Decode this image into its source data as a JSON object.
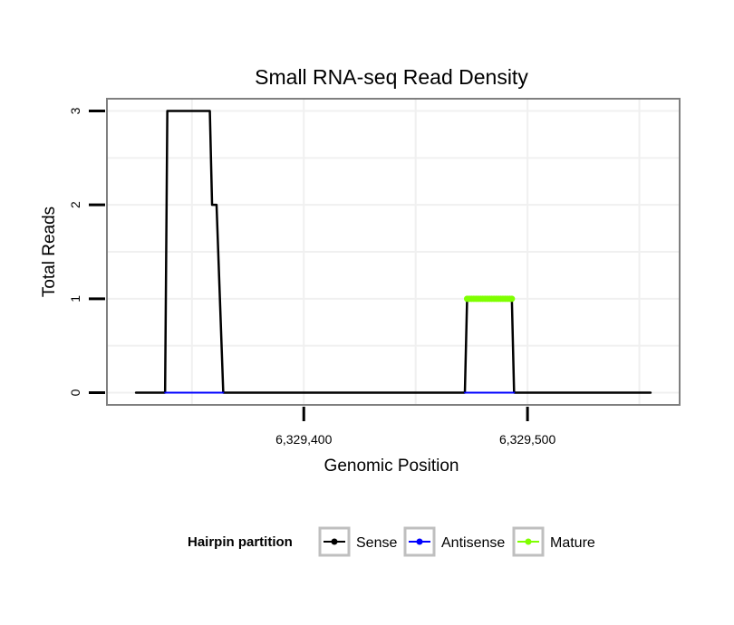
{
  "chart_data": {
    "type": "line",
    "title": "Small RNA-seq Read Density",
    "xlabel": "Genomic Position",
    "ylabel": "Total Reads",
    "xlim": [
      6329312,
      6329568
    ],
    "ylim": [
      -0.13,
      3.13
    ],
    "xticks": [
      {
        "value": 6329400,
        "label": "6,329,400"
      },
      {
        "value": 6329500,
        "label": "6,329,500"
      }
    ],
    "yticks": [
      {
        "value": 0,
        "label": "0"
      },
      {
        "value": 1,
        "label": "1"
      },
      {
        "value": 2,
        "label": "2"
      },
      {
        "value": 3,
        "label": "3"
      }
    ],
    "grid": true,
    "legend": {
      "title": "Hairpin partition",
      "position": "bottom",
      "entries": [
        {
          "label": "Sense",
          "color": "#000000"
        },
        {
          "label": "Antisense",
          "color": "#0000ff"
        },
        {
          "label": "Mature",
          "color": "#7fff00"
        }
      ]
    },
    "series": [
      {
        "name": "Sense",
        "color": "#000000",
        "x": [
          6329325,
          6329338,
          6329339,
          6329358,
          6329359,
          6329361,
          6329364,
          6329472,
          6329473,
          6329493,
          6329494,
          6329555
        ],
        "y": [
          0,
          0,
          3,
          3,
          2,
          2,
          0,
          0,
          1,
          1,
          0,
          0
        ]
      },
      {
        "name": "Antisense",
        "color": "#0000ff",
        "x": [
          6329338,
          6329364,
          6329472,
          6329494
        ],
        "y": [
          0,
          0,
          0,
          0
        ],
        "segments": [
          [
            0,
            1
          ],
          [
            2,
            3
          ]
        ]
      },
      {
        "name": "Mature",
        "color": "#7fff00",
        "x": [
          6329473,
          6329493
        ],
        "y": [
          1,
          1
        ]
      }
    ]
  }
}
